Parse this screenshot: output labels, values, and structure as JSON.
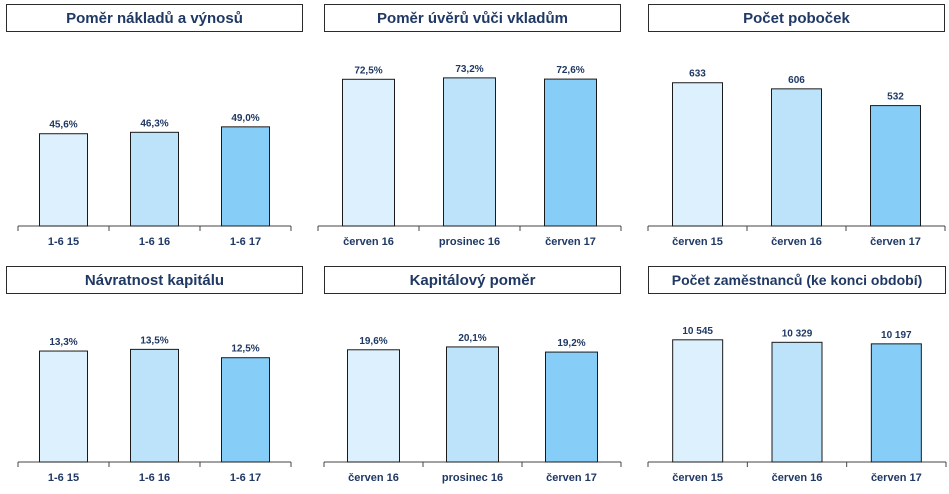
{
  "colors": {
    "bar_1": "#ddf0fd",
    "bar_2": "#bde3fb",
    "bar_3": "#86cdf7",
    "axis": "#444444",
    "title": "#1f3864"
  },
  "chart_data": [
    {
      "type": "bar",
      "title": "Poměr nákladů a výnosů",
      "categories": [
        "1-6 15",
        "1-6 16",
        "1-6 17"
      ],
      "values": [
        45.6,
        46.3,
        49.0
      ],
      "labels": [
        "45,6%",
        "46,3%",
        "49,0%"
      ],
      "ylim": [
        0,
        85
      ]
    },
    {
      "type": "bar",
      "title": "Poměr úvěrů vůči vkladům",
      "categories": [
        "červen 16",
        "prosinec 16",
        "červen 17"
      ],
      "values": [
        72.5,
        73.2,
        72.6
      ],
      "labels": [
        "72,5%",
        "73,2%",
        "72,6%"
      ],
      "ylim": [
        0,
        85
      ]
    },
    {
      "type": "bar",
      "title": "Počet poboček",
      "categories": [
        "červen 15",
        "červen 16",
        "červen 17"
      ],
      "values": [
        633,
        606,
        532
      ],
      "labels": [
        "633",
        "606",
        "532"
      ],
      "ylim": [
        0,
        760
      ]
    },
    {
      "type": "bar",
      "title": "Návratnost kapitálu",
      "categories": [
        "1-6 15",
        "1-6 16",
        "1-6 17"
      ],
      "values": [
        13.3,
        13.5,
        12.5
      ],
      "labels": [
        "13,3%",
        "13,5%",
        "12,5%"
      ],
      "ylim": [
        0,
        17.5
      ]
    },
    {
      "type": "bar",
      "title": "Kapitálový poměr",
      "categories": [
        "červen 16",
        "prosinec 16",
        "červen 17"
      ],
      "values": [
        19.6,
        20.1,
        19.2
      ],
      "labels": [
        "19,6%",
        "20,1%",
        "19,2%"
      ],
      "ylim": [
        0,
        25.5
      ]
    },
    {
      "type": "bar",
      "title": "Počet zaměstnanců (ke konci období)",
      "categories": [
        "červen 15",
        "červen 16",
        "červen 17"
      ],
      "values": [
        10545,
        10329,
        10197
      ],
      "labels": [
        "10 545",
        "10 329",
        "10 197"
      ],
      "ylim": [
        0,
        12600
      ]
    }
  ]
}
